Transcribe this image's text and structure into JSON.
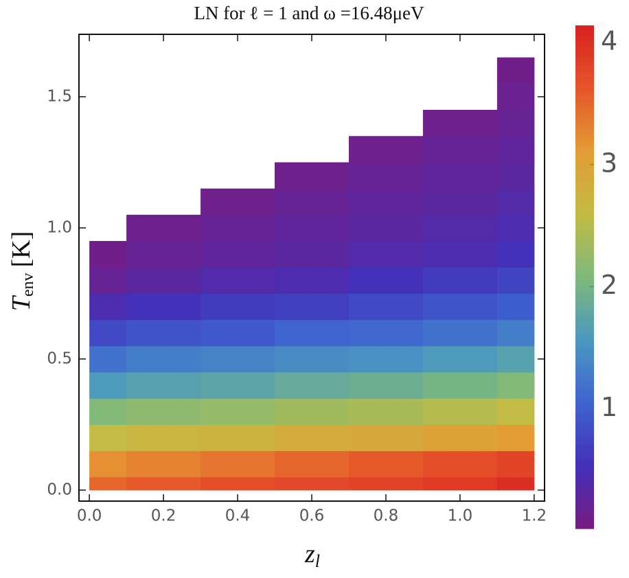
{
  "chart_data": {
    "type": "heatmap",
    "title": "LN for ℓ = 1 and ω =16.48μeV",
    "xlabel": {
      "symbol": "z",
      "subscript": "l"
    },
    "ylabel": {
      "symbol": "T",
      "subscript": "env",
      "unit": "[K]"
    },
    "x": [
      0,
      0.2,
      0.4,
      0.6,
      0.8,
      1.0,
      1.2
    ],
    "y": [
      0,
      0.1,
      0.2,
      0.3,
      0.4,
      0.5,
      0.6,
      0.7,
      0.8,
      0.9,
      1.0,
      1.1,
      1.2,
      1.3,
      1.4,
      1.5,
      1.6
    ],
    "z": [
      [
        3.5,
        3.6,
        3.7,
        3.75,
        3.8,
        3.9,
        4.0
      ],
      [
        3.2,
        3.3,
        3.4,
        3.5,
        3.6,
        3.7,
        3.8
      ],
      [
        2.6,
        2.7,
        2.75,
        2.85,
        2.9,
        3.0,
        3.1
      ],
      [
        2.1,
        2.2,
        2.25,
        2.35,
        2.4,
        2.5,
        2.6
      ],
      [
        1.6,
        1.7,
        1.75,
        1.85,
        1.9,
        2.0,
        2.1
      ],
      [
        1.2,
        1.3,
        1.35,
        1.45,
        1.5,
        1.6,
        1.7
      ],
      [
        0.8,
        0.9,
        0.95,
        1.05,
        1.1,
        1.2,
        1.3
      ],
      [
        0.45,
        0.55,
        0.65,
        0.7,
        0.8,
        0.9,
        1.0
      ],
      [
        0.2,
        0.3,
        0.4,
        0.45,
        0.55,
        0.65,
        0.75
      ],
      [
        0.1,
        0.2,
        0.25,
        0.3,
        0.4,
        0.45,
        0.55
      ],
      [
        null,
        0.12,
        0.2,
        0.25,
        0.3,
        0.38,
        0.45
      ],
      [
        null,
        null,
        0.12,
        0.2,
        0.25,
        0.3,
        0.38
      ],
      [
        null,
        null,
        null,
        0.12,
        0.2,
        0.25,
        0.3
      ],
      [
        null,
        null,
        null,
        null,
        0.12,
        0.2,
        0.25
      ],
      [
        null,
        null,
        null,
        null,
        null,
        0.12,
        0.2
      ],
      [
        null,
        null,
        null,
        null,
        null,
        null,
        0.15
      ],
      [
        null,
        null,
        null,
        null,
        null,
        null,
        0.1
      ]
    ],
    "xlim": [
      -0.028,
      1.228
    ],
    "ylim": [
      -0.042,
      1.738
    ],
    "xticks": [
      {
        "value": 0,
        "label": "0.0"
      },
      {
        "value": 0.2,
        "label": "0.2"
      },
      {
        "value": 0.4,
        "label": "0.4"
      },
      {
        "value": 0.6,
        "label": "0.6"
      },
      {
        "value": 0.8,
        "label": "0.8"
      },
      {
        "value": 1.0,
        "label": "1.0"
      },
      {
        "value": 1.2,
        "label": "1.2"
      }
    ],
    "yticks": [
      {
        "value": 0,
        "label": "0.0"
      },
      {
        "value": 0.5,
        "label": "0.5"
      },
      {
        "value": 1.0,
        "label": "1.0"
      },
      1.5
    ],
    "zlim": [
      0.02,
      4.14
    ],
    "zticks": [
      1,
      2,
      3,
      4
    ],
    "colormap": [
      "#781c81",
      "#4330b8",
      "#3f63cf",
      "#4a98c0",
      "#7fb97a",
      "#c2bb45",
      "#e49c35",
      "#e5562a",
      "#d92120"
    ]
  }
}
